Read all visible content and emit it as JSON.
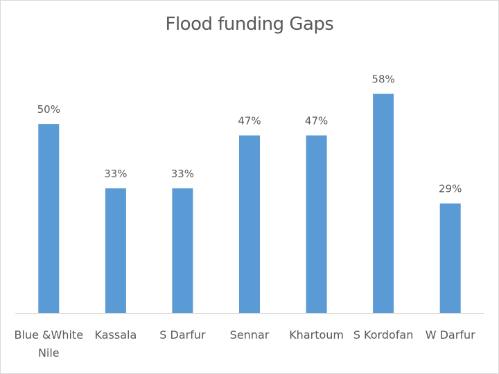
{
  "chart_data": {
    "type": "bar",
    "title": "Flood funding Gaps",
    "categories": [
      "Blue &White Nile",
      "Kassala",
      "S Darfur",
      "Sennar",
      "Khartoum",
      "S Kordofan",
      "W Darfur"
    ],
    "category_lines": [
      [
        "Blue &White",
        "Nile"
      ],
      [
        "Kassala"
      ],
      [
        "S Darfur"
      ],
      [
        "Sennar"
      ],
      [
        "Khartoum"
      ],
      [
        "S Kordofan"
      ],
      [
        "W Darfur"
      ]
    ],
    "values": [
      50,
      33,
      33,
      47,
      47,
      58,
      29
    ],
    "value_labels": [
      "50%",
      "33%",
      "33%",
      "47%",
      "47%",
      "58%",
      "29%"
    ],
    "unit": "%",
    "ylim": [
      0,
      70
    ],
    "grid": false,
    "legend": "none",
    "xlabel": "",
    "ylabel": "",
    "colors": {
      "bar": "#5b9bd5",
      "axis": "#d9d9d9",
      "text": "#595959"
    }
  }
}
